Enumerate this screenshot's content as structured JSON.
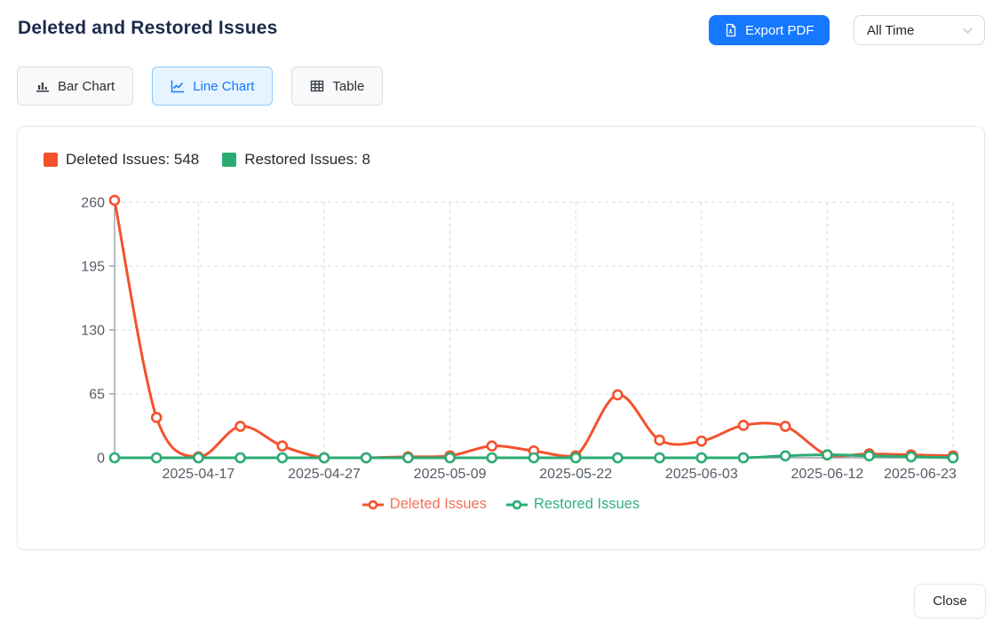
{
  "page": {
    "title": "Deleted and Restored Issues"
  },
  "header": {
    "export_button": {
      "label": "Export PDF",
      "icon": "file-pdf-icon",
      "color": "#1677ff"
    },
    "time_filter": {
      "value": "All Time",
      "icon": "chevron-down-icon"
    }
  },
  "view_tabs": [
    {
      "label": "Bar Chart",
      "icon": "bar-chart-icon",
      "active": false
    },
    {
      "label": "Line Chart",
      "icon": "line-chart-icon",
      "active": true
    },
    {
      "label": "Table",
      "icon": "table-icon",
      "active": false
    }
  ],
  "summary_legend": [
    {
      "label": "Deleted Issues: 548",
      "color": "#f4512c"
    },
    {
      "label": "Restored Issues: 8",
      "color": "#2bab74"
    }
  ],
  "chart_data": {
    "type": "line",
    "num_points": 21,
    "ylim": [
      0,
      260
    ],
    "yticks": [
      0,
      65,
      130,
      195,
      260
    ],
    "grid": true,
    "legend_position": "bottom",
    "x_tick_labels": [
      {
        "index": 2,
        "label": "2025-04-17"
      },
      {
        "index": 5,
        "label": "2025-04-27"
      },
      {
        "index": 8,
        "label": "2025-05-09"
      },
      {
        "index": 11,
        "label": "2025-05-22"
      },
      {
        "index": 14,
        "label": "2025-06-03"
      },
      {
        "index": 17,
        "label": "2025-06-12"
      },
      {
        "index": 20,
        "label": "2025-06-23"
      }
    ],
    "series": [
      {
        "name": "Deleted Issues",
        "color": "#f4512c",
        "legend_text_color": "#f4705a",
        "total": 548,
        "values": [
          262,
          41,
          1,
          32,
          12,
          0,
          0,
          1,
          2,
          12,
          7,
          2,
          64,
          18,
          17,
          33,
          32,
          3,
          4,
          3,
          2
        ]
      },
      {
        "name": "Restored Issues",
        "color": "#2bab74",
        "legend_text_color": "#33ae81",
        "total": 8,
        "values": [
          0,
          0,
          0,
          0,
          0,
          0,
          0,
          0,
          0,
          0,
          0,
          0,
          0,
          0,
          0,
          0,
          2,
          3,
          2,
          1,
          0
        ]
      }
    ]
  },
  "footer": {
    "close_label": "Close"
  }
}
